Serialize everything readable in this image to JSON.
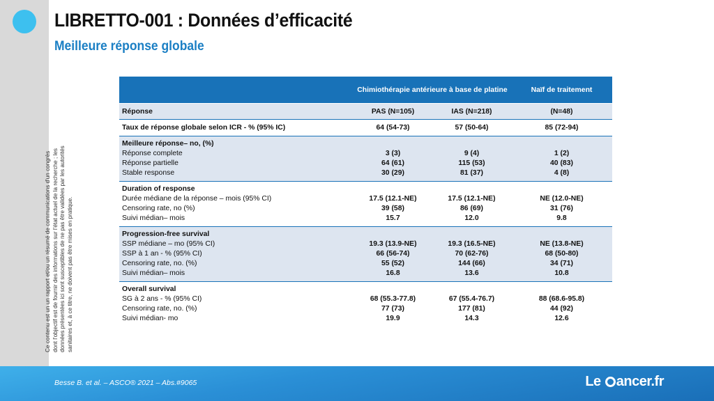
{
  "slide": {
    "title": "LIBRETTO-001 : Données d’efficacité",
    "subtitle": "Meilleure réponse globale",
    "disclaimer": "Ce contenu est un un rapport et/ou un résumé de communications d'un congrès dont l'objectif est de fournir des informations sur l'état actuel de la recherche ; les données présentées ici sont susceptibles de ne pas être validées par les autorités sanitaires et, à ce titre, ne doivent pas être mises en pratique.",
    "citation": "Besse B. et al. – ASCO® 2021 – Abs.#9065",
    "logo_left": "Le",
    "logo_right": "ancer.fr",
    "colors": {
      "header": "#1872b8",
      "accent": "#3dc0ef",
      "row_alt": "#dde5f0"
    }
  },
  "table": {
    "header": {
      "col1": "Chimiothérapie antérieure à base de platine",
      "col3": "Naïf de traitement"
    },
    "subheader": {
      "label": "Réponse",
      "pas": "PAS (N=105)",
      "ias": "IAS (N=218)",
      "naif": "(N=48)"
    },
    "orr": {
      "label": "Taux de réponse globale selon ICR - % (95% IC)",
      "pas": "64 (54-73)",
      "ias": "57 (50-64)",
      "naif": "85 (72-94)"
    },
    "groups": [
      {
        "title": "Meilleure réponse– no, (%)",
        "rows": [
          {
            "label": "Réponse complete",
            "pas": "3 (3)",
            "ias": "9 (4)",
            "naif": "1 (2)"
          },
          {
            "label": "Réponse partielle",
            "pas": "64 (61)",
            "ias": "115 (53)",
            "naif": "40 (83)"
          },
          {
            "label": "Stable response",
            "pas": "30 (29)",
            "ias": "81 (37)",
            "naif": "4 (8)"
          }
        ]
      },
      {
        "title": "Duration of response",
        "rows": [
          {
            "label": "Durée médiane de la réponse – mois (95% CI)",
            "pas": "17.5 (12.1-NE)",
            "ias": "17.5 (12.1-NE)",
            "naif": "NE (12.0-NE)"
          },
          {
            "label": "Censoring rate, no (%)",
            "pas": "39 (58)",
            "ias": "86 (69)",
            "naif": "31 (76)"
          },
          {
            "label": "Suivi médian– mois",
            "pas": "15.7",
            "ias": "12.0",
            "naif": "9.8"
          }
        ]
      },
      {
        "title": "Progression-free survival",
        "rows": [
          {
            "label": "SSP médiane – mo (95% CI)",
            "pas": "19.3 (13.9-NE)",
            "ias": "19.3 (16.5-NE)",
            "naif": "NE (13.8-NE)"
          },
          {
            "label": "SSP à 1 an - % (95% CI)",
            "pas": "66 (56-74)",
            "ias": "70 (62-76)",
            "naif": "68 (50-80)"
          },
          {
            "label": "Censoring rate, no. (%)",
            "pas": "55 (52)",
            "ias": "144 (66)",
            "naif": "34 (71)"
          },
          {
            "label": "Suivi médian– mois",
            "pas": "16.8",
            "ias": "13.6",
            "naif": "10.8"
          }
        ]
      },
      {
        "title": "Overall survival",
        "rows": [
          {
            "label": "SG à 2 ans - % (95% CI)",
            "pas": "68 (55.3-77.8)",
            "ias": "67 (55.4-76.7)",
            "naif": "88 (68.6-95.8)"
          },
          {
            "label": "Censoring rate, no. (%)",
            "pas": "77 (73)",
            "ias": "177 (81)",
            "naif": "44 (92)"
          },
          {
            "label": "Suivi médian- mo",
            "pas": "19.9",
            "ias": "14.3",
            "naif": "12.6"
          }
        ]
      }
    ]
  }
}
